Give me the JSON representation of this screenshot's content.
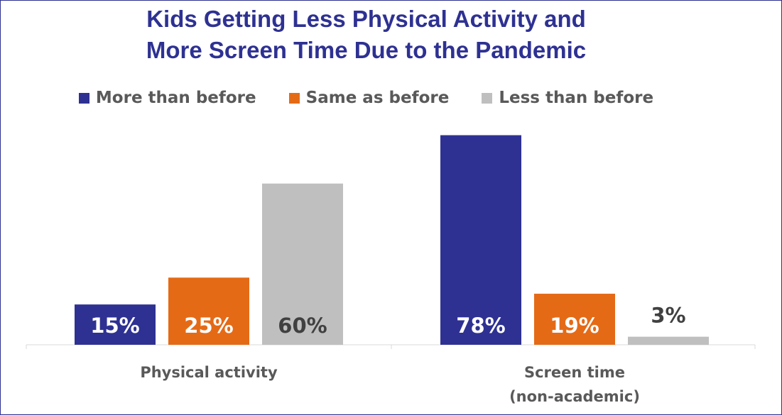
{
  "chart_data": {
    "type": "bar",
    "title": "Kids Getting Less Physical Activity and More Screen Time Due to the Pandemic",
    "title_lines": [
      "Kids Getting Less Physical Activity and",
      "More Screen Time Due to the Pandemic"
    ],
    "categories": [
      "Physical activity",
      "Screen time (non-academic)"
    ],
    "category_lines": [
      [
        "Physical activity"
      ],
      [
        "Screen time",
        "(non-academic)"
      ]
    ],
    "series": [
      {
        "name": "More than before",
        "values": [
          15,
          78
        ],
        "labels": [
          "15%",
          "78%"
        ],
        "color": "#2e3192",
        "label_color": "#ffffff"
      },
      {
        "name": "Same as before",
        "values": [
          25,
          19
        ],
        "labels": [
          "25%",
          "19%"
        ],
        "color": "#e56a16",
        "label_color": "#ffffff"
      },
      {
        "name": "Less than before",
        "values": [
          60,
          3
        ],
        "labels": [
          "60%",
          "3%"
        ],
        "color": "#bfbfbf",
        "label_color": "#404040"
      }
    ],
    "ylim": [
      0,
      80
    ],
    "grid": false,
    "legend_position": "top",
    "xlabel": "",
    "ylabel": ""
  }
}
